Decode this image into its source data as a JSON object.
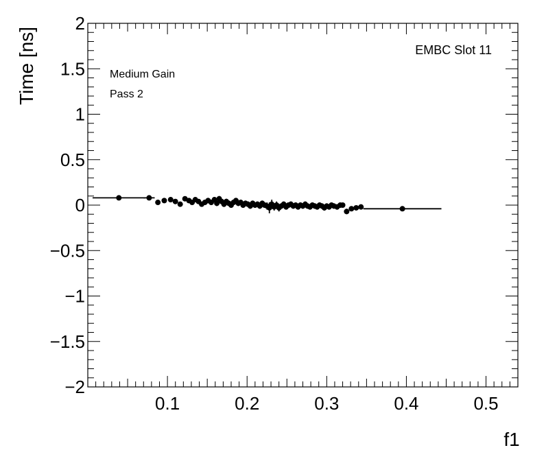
{
  "chart_data": {
    "type": "scatter",
    "xlabel": "f1",
    "ylabel": "Time [ns]",
    "xlim": [
      0.0,
      0.54
    ],
    "ylim": [
      -2,
      2
    ],
    "x_ticks": [
      "0.1",
      "0.2",
      "0.3",
      "0.4",
      "0.5"
    ],
    "y_ticks": [
      "2",
      "1.5",
      "1",
      "0.5",
      "0",
      "−0.5",
      "−1",
      "−1.5",
      "−2"
    ],
    "annotations": [
      "EMBC Slot 11",
      "Medium Gain",
      "Pass 2"
    ],
    "grid": false,
    "series": [
      {
        "marker_color": "#000000",
        "points": [
          {
            "x": 0.039,
            "y": 0.08,
            "xerr": 0.033,
            "yerr": 0.01
          },
          {
            "x": 0.077,
            "y": 0.08,
            "xerr": 0.007,
            "yerr": 0.01
          },
          {
            "x": 0.088,
            "y": 0.03,
            "xerr": 0.003,
            "yerr": 0.01
          },
          {
            "x": 0.096,
            "y": 0.05,
            "xerr": 0.003,
            "yerr": 0.02
          },
          {
            "x": 0.104,
            "y": 0.06,
            "xerr": 0.003,
            "yerr": 0.02
          },
          {
            "x": 0.11,
            "y": 0.04,
            "xerr": 0.003,
            "yerr": 0.02
          },
          {
            "x": 0.116,
            "y": 0.01,
            "xerr": 0.002,
            "yerr": 0.02
          },
          {
            "x": 0.122,
            "y": 0.07,
            "xerr": 0.002,
            "yerr": 0.02
          },
          {
            "x": 0.127,
            "y": 0.05,
            "xerr": 0.002,
            "yerr": 0.02
          },
          {
            "x": 0.131,
            "y": 0.03,
            "xerr": 0.002,
            "yerr": 0.02
          },
          {
            "x": 0.135,
            "y": 0.06,
            "xerr": 0.002,
            "yerr": 0.02
          },
          {
            "x": 0.139,
            "y": 0.04,
            "xerr": 0.002,
            "yerr": 0.02
          },
          {
            "x": 0.143,
            "y": 0.01,
            "xerr": 0.002,
            "yerr": 0.02
          },
          {
            "x": 0.147,
            "y": 0.03,
            "xerr": 0.002,
            "yerr": 0.02
          },
          {
            "x": 0.151,
            "y": 0.05,
            "xerr": 0.002,
            "yerr": 0.03
          },
          {
            "x": 0.155,
            "y": 0.03,
            "xerr": 0.002,
            "yerr": 0.03
          },
          {
            "x": 0.159,
            "y": 0.06,
            "xerr": 0.002,
            "yerr": 0.03
          },
          {
            "x": 0.162,
            "y": 0.02,
            "xerr": 0.002,
            "yerr": 0.03
          },
          {
            "x": 0.165,
            "y": 0.07,
            "xerr": 0.002,
            "yerr": 0.03
          },
          {
            "x": 0.168,
            "y": 0.04,
            "xerr": 0.002,
            "yerr": 0.03
          },
          {
            "x": 0.171,
            "y": 0.01,
            "xerr": 0.002,
            "yerr": 0.03
          },
          {
            "x": 0.174,
            "y": 0.04,
            "xerr": 0.002,
            "yerr": 0.03
          },
          {
            "x": 0.177,
            "y": 0.02,
            "xerr": 0.002,
            "yerr": 0.03
          },
          {
            "x": 0.18,
            "y": 0.0,
            "xerr": 0.002,
            "yerr": 0.03
          },
          {
            "x": 0.183,
            "y": 0.03,
            "xerr": 0.002,
            "yerr": 0.03
          },
          {
            "x": 0.186,
            "y": 0.05,
            "xerr": 0.002,
            "yerr": 0.03
          },
          {
            "x": 0.189,
            "y": 0.02,
            "xerr": 0.002,
            "yerr": 0.03
          },
          {
            "x": 0.192,
            "y": 0.03,
            "xerr": 0.002,
            "yerr": 0.03
          },
          {
            "x": 0.195,
            "y": 0.0,
            "xerr": 0.002,
            "yerr": 0.03
          },
          {
            "x": 0.198,
            "y": 0.02,
            "xerr": 0.002,
            "yerr": 0.03
          },
          {
            "x": 0.201,
            "y": 0.01,
            "xerr": 0.002,
            "yerr": 0.03
          },
          {
            "x": 0.204,
            "y": -0.01,
            "xerr": 0.002,
            "yerr": 0.03
          },
          {
            "x": 0.207,
            "y": 0.02,
            "xerr": 0.002,
            "yerr": 0.03
          },
          {
            "x": 0.21,
            "y": 0.0,
            "xerr": 0.002,
            "yerr": 0.03
          },
          {
            "x": 0.213,
            "y": 0.01,
            "xerr": 0.002,
            "yerr": 0.03
          },
          {
            "x": 0.216,
            "y": -0.01,
            "xerr": 0.002,
            "yerr": 0.03
          },
          {
            "x": 0.219,
            "y": 0.02,
            "xerr": 0.002,
            "yerr": 0.03
          },
          {
            "x": 0.222,
            "y": 0.0,
            "xerr": 0.002,
            "yerr": 0.03
          },
          {
            "x": 0.225,
            "y": -0.01,
            "xerr": 0.002,
            "yerr": 0.04
          },
          {
            "x": 0.228,
            "y": -0.03,
            "xerr": 0.002,
            "yerr": 0.06
          },
          {
            "x": 0.231,
            "y": 0.01,
            "xerr": 0.002,
            "yerr": 0.05
          },
          {
            "x": 0.234,
            "y": -0.02,
            "xerr": 0.002,
            "yerr": 0.04
          },
          {
            "x": 0.237,
            "y": 0.0,
            "xerr": 0.002,
            "yerr": 0.04
          },
          {
            "x": 0.24,
            "y": -0.03,
            "xerr": 0.002,
            "yerr": 0.04
          },
          {
            "x": 0.243,
            "y": -0.01,
            "xerr": 0.002,
            "yerr": 0.03
          },
          {
            "x": 0.246,
            "y": 0.01,
            "xerr": 0.002,
            "yerr": 0.03
          },
          {
            "x": 0.249,
            "y": -0.02,
            "xerr": 0.002,
            "yerr": 0.03
          },
          {
            "x": 0.252,
            "y": 0.0,
            "xerr": 0.002,
            "yerr": 0.03
          },
          {
            "x": 0.255,
            "y": 0.01,
            "xerr": 0.002,
            "yerr": 0.03
          },
          {
            "x": 0.258,
            "y": -0.01,
            "xerr": 0.002,
            "yerr": 0.03
          },
          {
            "x": 0.261,
            "y": 0.0,
            "xerr": 0.002,
            "yerr": 0.03
          },
          {
            "x": 0.264,
            "y": -0.02,
            "xerr": 0.002,
            "yerr": 0.03
          },
          {
            "x": 0.267,
            "y": 0.0,
            "xerr": 0.002,
            "yerr": 0.03
          },
          {
            "x": 0.27,
            "y": -0.01,
            "xerr": 0.002,
            "yerr": 0.03
          },
          {
            "x": 0.273,
            "y": 0.01,
            "xerr": 0.002,
            "yerr": 0.03
          },
          {
            "x": 0.276,
            "y": -0.01,
            "xerr": 0.002,
            "yerr": 0.03
          },
          {
            "x": 0.279,
            "y": -0.02,
            "xerr": 0.002,
            "yerr": 0.03
          },
          {
            "x": 0.282,
            "y": 0.0,
            "xerr": 0.002,
            "yerr": 0.03
          },
          {
            "x": 0.285,
            "y": -0.01,
            "xerr": 0.002,
            "yerr": 0.03
          },
          {
            "x": 0.288,
            "y": -0.02,
            "xerr": 0.002,
            "yerr": 0.03
          },
          {
            "x": 0.291,
            "y": 0.0,
            "xerr": 0.002,
            "yerr": 0.03
          },
          {
            "x": 0.294,
            "y": -0.01,
            "xerr": 0.002,
            "yerr": 0.03
          },
          {
            "x": 0.297,
            "y": -0.03,
            "xerr": 0.002,
            "yerr": 0.03
          },
          {
            "x": 0.3,
            "y": -0.01,
            "xerr": 0.002,
            "yerr": 0.03
          },
          {
            "x": 0.303,
            "y": -0.02,
            "xerr": 0.002,
            "yerr": 0.03
          },
          {
            "x": 0.306,
            "y": 0.0,
            "xerr": 0.002,
            "yerr": 0.03
          },
          {
            "x": 0.309,
            "y": -0.01,
            "xerr": 0.002,
            "yerr": 0.03
          },
          {
            "x": 0.313,
            "y": -0.02,
            "xerr": 0.002,
            "yerr": 0.03
          },
          {
            "x": 0.317,
            "y": 0.0,
            "xerr": 0.002,
            "yerr": 0.03
          },
          {
            "x": 0.32,
            "y": 0.0,
            "xerr": 0.002,
            "yerr": 0.02
          },
          {
            "x": 0.325,
            "y": -0.07,
            "xerr": 0.003,
            "yerr": 0.03
          },
          {
            "x": 0.331,
            "y": -0.04,
            "xerr": 0.003,
            "yerr": 0.02
          },
          {
            "x": 0.337,
            "y": -0.03,
            "xerr": 0.003,
            "yerr": 0.02
          },
          {
            "x": 0.343,
            "y": -0.02,
            "xerr": 0.003,
            "yerr": 0.02
          },
          {
            "x": 0.395,
            "y": -0.04,
            "xerr": 0.049,
            "yerr": 0.01
          }
        ]
      }
    ]
  }
}
